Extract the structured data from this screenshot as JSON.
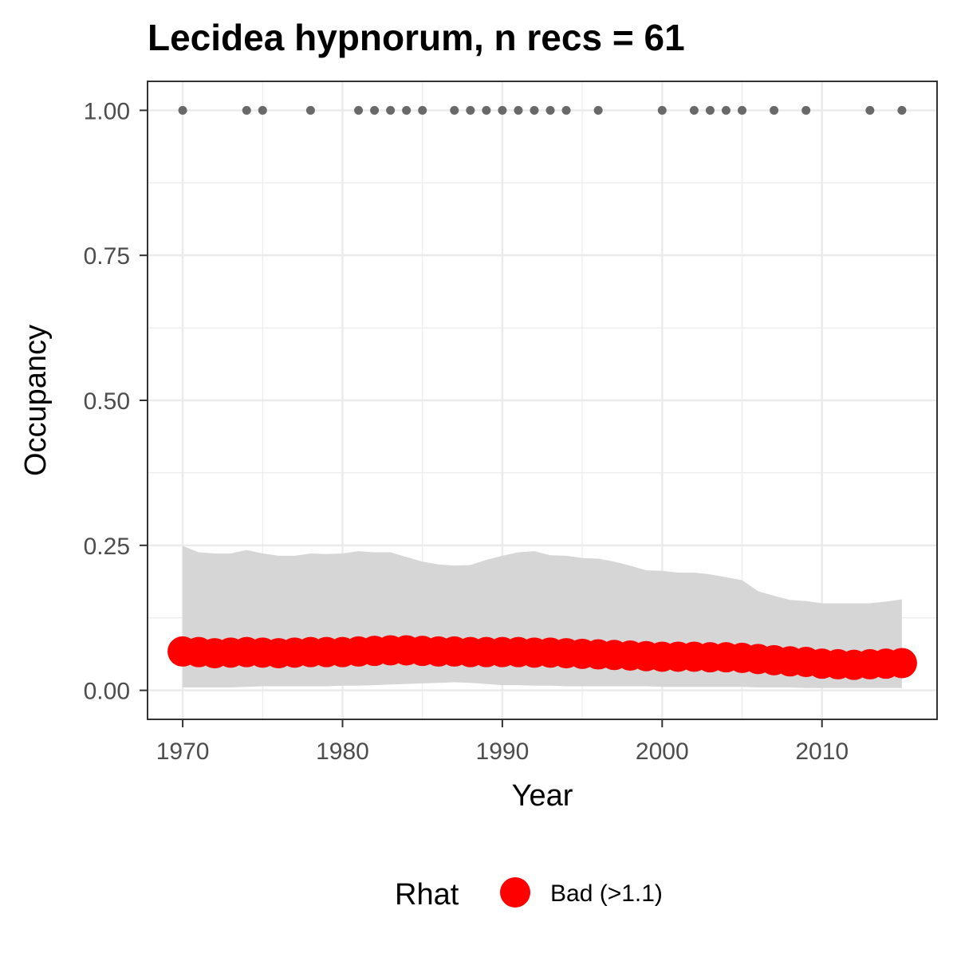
{
  "chart_data": {
    "type": "scatter",
    "title": "Lecidea hypnorum, n recs = 61",
    "xlabel": "Year",
    "ylabel": "Occupancy",
    "xlim": [
      1967.8,
      2017.2
    ],
    "ylim": [
      -0.05,
      1.05
    ],
    "x_ticks": [
      1970,
      1980,
      1990,
      2000,
      2010
    ],
    "x_tick_labels": [
      "1970",
      "1980",
      "1990",
      "2000",
      "2010"
    ],
    "y_ticks": [
      0,
      0.25,
      0.5,
      0.75,
      1
    ],
    "y_tick_labels": [
      "0.00",
      "0.25",
      "0.50",
      "0.75",
      "1.00"
    ],
    "grid": true,
    "legend": {
      "title": "Rhat",
      "position": "bottom",
      "entries": [
        {
          "label": "Bad (>1.1)",
          "color": "#ff0000"
        }
      ]
    },
    "colors": {
      "estimate": "#ff0000",
      "ribbon": "#d6d6d6",
      "record": "#696969",
      "grid": "#ebebeb",
      "border": "#333333"
    },
    "series": [
      {
        "name": "Rhat: Bad (>1.1)",
        "kind": "estimate",
        "x": [
          1970,
          1971,
          1972,
          1973,
          1974,
          1975,
          1976,
          1977,
          1978,
          1979,
          1980,
          1981,
          1982,
          1983,
          1984,
          1985,
          1986,
          1987,
          1988,
          1989,
          1990,
          1991,
          1992,
          1993,
          1994,
          1995,
          1996,
          1997,
          1998,
          1999,
          2000,
          2001,
          2002,
          2003,
          2004,
          2005,
          2006,
          2007,
          2008,
          2009,
          2010,
          2011,
          2012,
          2013,
          2014,
          2015
        ],
        "y": [
          0.067,
          0.066,
          0.064,
          0.065,
          0.066,
          0.065,
          0.064,
          0.065,
          0.066,
          0.066,
          0.066,
          0.067,
          0.068,
          0.069,
          0.069,
          0.068,
          0.067,
          0.067,
          0.066,
          0.066,
          0.066,
          0.066,
          0.065,
          0.065,
          0.064,
          0.063,
          0.062,
          0.061,
          0.06,
          0.059,
          0.058,
          0.058,
          0.058,
          0.057,
          0.057,
          0.056,
          0.054,
          0.052,
          0.05,
          0.049,
          0.046,
          0.045,
          0.044,
          0.045,
          0.046,
          0.047
        ]
      },
      {
        "name": "Credible interval",
        "kind": "ribbon",
        "x": [
          1970,
          1971,
          1972,
          1973,
          1974,
          1975,
          1976,
          1977,
          1978,
          1979,
          1980,
          1981,
          1982,
          1983,
          1984,
          1985,
          1986,
          1987,
          1988,
          1989,
          1990,
          1991,
          1992,
          1993,
          1994,
          1995,
          1996,
          1997,
          1998,
          1999,
          2000,
          2001,
          2002,
          2003,
          2004,
          2005,
          2006,
          2007,
          2008,
          2009,
          2010,
          2011,
          2012,
          2013,
          2014,
          2015
        ],
        "lower": [
          0.005,
          0.005,
          0.005,
          0.005,
          0.006,
          0.007,
          0.007,
          0.007,
          0.007,
          0.007,
          0.008,
          0.008,
          0.009,
          0.01,
          0.011,
          0.012,
          0.013,
          0.014,
          0.013,
          0.011,
          0.009,
          0.009,
          0.008,
          0.008,
          0.007,
          0.007,
          0.007,
          0.007,
          0.007,
          0.007,
          0.006,
          0.006,
          0.006,
          0.006,
          0.006,
          0.006,
          0.005,
          0.005,
          0.005,
          0.004,
          0.004,
          0.004,
          0.004,
          0.004,
          0.004,
          0.004
        ],
        "upper": [
          0.249,
          0.238,
          0.236,
          0.236,
          0.242,
          0.236,
          0.232,
          0.232,
          0.236,
          0.235,
          0.236,
          0.24,
          0.238,
          0.238,
          0.23,
          0.222,
          0.217,
          0.215,
          0.216,
          0.225,
          0.232,
          0.238,
          0.24,
          0.233,
          0.232,
          0.228,
          0.227,
          0.222,
          0.215,
          0.207,
          0.206,
          0.203,
          0.203,
          0.2,
          0.195,
          0.19,
          0.171,
          0.163,
          0.156,
          0.154,
          0.15,
          0.15,
          0.15,
          0.15,
          0.153,
          0.157
        ]
      },
      {
        "name": "Records",
        "kind": "records",
        "x": [
          1970,
          1974,
          1975,
          1978,
          1981,
          1982,
          1983,
          1984,
          1985,
          1987,
          1988,
          1989,
          1990,
          1991,
          1992,
          1993,
          1994,
          1996,
          2000,
          2002,
          2003,
          2004,
          2005,
          2007,
          2009,
          2013,
          2015
        ],
        "y": [
          1,
          1,
          1,
          1,
          1,
          1,
          1,
          1,
          1,
          1,
          1,
          1,
          1,
          1,
          1,
          1,
          1,
          1,
          1,
          1,
          1,
          1,
          1,
          1,
          1,
          1,
          1
        ]
      }
    ]
  }
}
